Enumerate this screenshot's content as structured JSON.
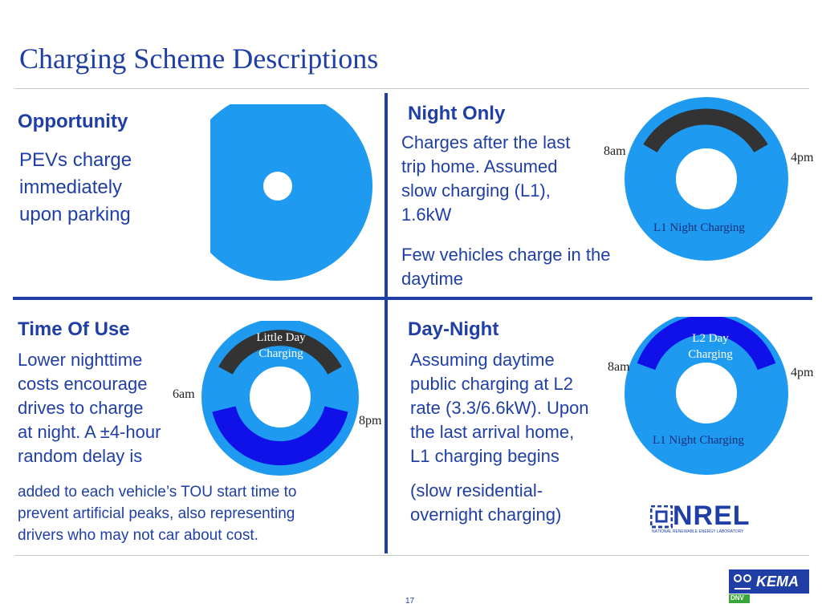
{
  "title": "Charging Scheme Descriptions",
  "page_number": "17",
  "opportunity": {
    "heading": "Opportunity",
    "lines": [
      "PEVs charge",
      "immediately",
      "upon parking"
    ]
  },
  "night_only": {
    "heading": "Night Only",
    "lines": [
      "Charges after the last",
      "trip home. Assumed",
      "slow charging (L1),",
      "1.6kW"
    ],
    "lines2": [
      "Few vehicles charge in the",
      "daytime"
    ],
    "label_8am": "8am",
    "label_4pm": "4pm",
    "inner_label": "L1 Night Charging"
  },
  "time_of_use": {
    "heading": "Time Of Use",
    "lines": [
      "Lower nighttime",
      "costs encourage",
      "drives to charge",
      "at night. A ±4-hour",
      "random delay is"
    ],
    "lines2": [
      "added to each vehicle’s TOU start time to",
      "prevent artificial peaks, also representing",
      "drivers who may not car about cost."
    ],
    "label_6am": "6am",
    "label_8pm": "8pm",
    "arc_label_line1": "Little Day",
    "arc_label_line2": "Charging"
  },
  "day_night": {
    "heading": "Day-Night",
    "lines": [
      "Assuming daytime",
      "public charging at L2",
      "rate (3.3/6.6kW). Upon",
      "the last arrival home,",
      "L1 charging begins"
    ],
    "lines2": [
      "(slow residential-",
      "overnight charging)"
    ],
    "label_8am": "8am",
    "label_4pm": "4pm",
    "arc_label_line1": "L2 Day",
    "arc_label_line2": "Charging",
    "inner_label": "L1 Night Charging"
  },
  "logos": {
    "nrel": "NREL",
    "nrel_sub": "NATIONAL RENEWABLE ENERGY LABORATORY",
    "kema": "KEMA",
    "dnv": "DNV"
  },
  "colors": {
    "title_blue": "#1f3fa6",
    "ring_light_blue": "#1e9af0",
    "arc_dark_gray": "#333333",
    "arc_royal_blue": "#1010e8"
  }
}
